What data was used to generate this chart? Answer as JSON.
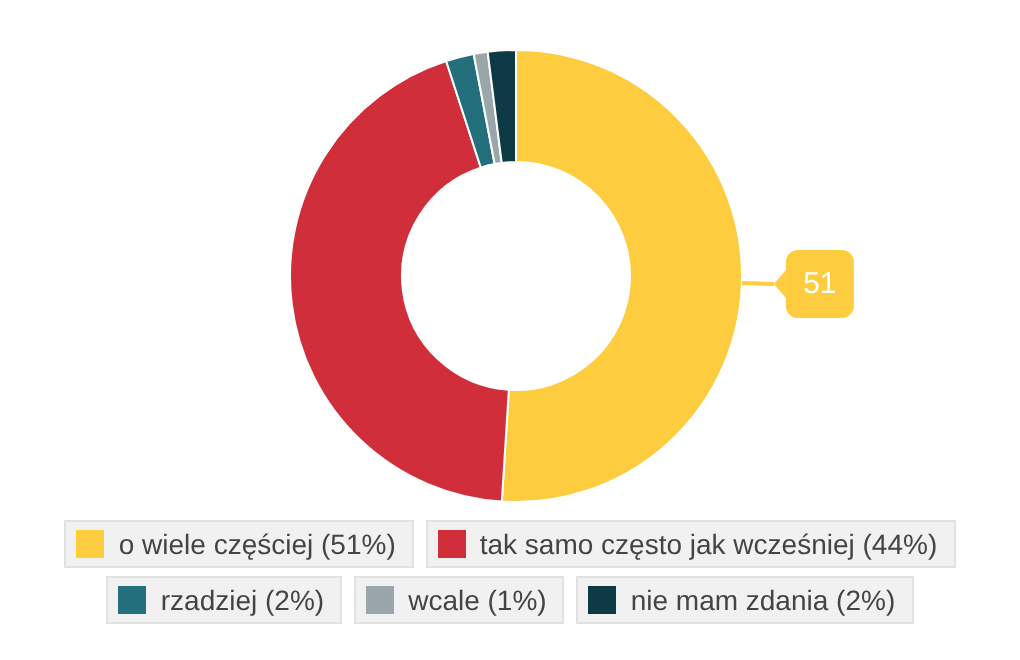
{
  "chart_data": {
    "type": "donut",
    "categories": [
      "o wiele częściej (51%)",
      "tak samo często jak wcześniej (44%)",
      "rzadziej (2%)",
      "wcale (1%)",
      "nie mam zdania (2%)"
    ],
    "values": [
      51,
      44,
      2,
      1,
      2
    ],
    "colors": [
      "#fecd3f",
      "#cf2e3a",
      "#236f7c",
      "#9aa6aa",
      "#0e3a45"
    ],
    "value_labels": [
      "51",
      null,
      null,
      null,
      null
    ],
    "legend": "bottom"
  }
}
